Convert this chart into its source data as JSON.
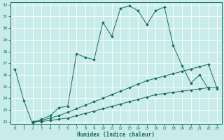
{
  "xlabel": "Humidex (Indice chaleur)",
  "xlim": [
    -0.5,
    23.5
  ],
  "ylim": [
    21.8,
    32.2
  ],
  "yticks": [
    22,
    23,
    24,
    25,
    26,
    27,
    28,
    29,
    30,
    31,
    32
  ],
  "xticks": [
    0,
    1,
    2,
    3,
    4,
    5,
    6,
    7,
    8,
    9,
    10,
    11,
    12,
    13,
    14,
    15,
    16,
    17,
    18,
    19,
    20,
    21,
    22,
    23
  ],
  "background_color": "#c8ece9",
  "line_color": "#1a6b5e",
  "grid_color": "#ffffff",
  "line1_x": [
    0,
    1,
    2,
    3,
    4,
    5,
    6,
    7,
    8,
    9,
    10,
    11,
    12,
    13,
    14,
    15,
    16,
    17,
    18,
    19,
    20,
    21,
    22
  ],
  "line1_y": [
    26.5,
    23.8,
    21.8,
    22.2,
    22.5,
    23.2,
    23.3,
    27.8,
    27.5,
    27.3,
    30.5,
    29.3,
    31.7,
    31.9,
    31.5,
    30.3,
    31.5,
    31.8,
    28.5,
    26.8,
    25.3,
    26.0,
    24.8
  ],
  "line2_x": [
    2,
    3,
    4,
    5,
    6,
    7,
    8,
    9,
    10,
    11,
    12,
    13,
    14,
    15,
    16,
    17,
    18,
    19,
    20,
    21,
    22,
    23
  ],
  "line2_y": [
    22.0,
    22.1,
    22.3,
    22.5,
    22.8,
    23.1,
    23.4,
    23.7,
    24.0,
    24.3,
    24.6,
    24.9,
    25.2,
    25.5,
    25.7,
    25.9,
    26.1,
    26.3,
    26.5,
    26.7,
    26.9,
    24.8
  ],
  "line3_x": [
    2,
    3,
    4,
    5,
    6,
    7,
    8,
    9,
    10,
    11,
    12,
    13,
    14,
    15,
    16,
    17,
    18,
    19,
    20,
    21,
    22,
    23
  ],
  "line3_y": [
    22.0,
    22.0,
    22.1,
    22.2,
    22.3,
    22.5,
    22.7,
    22.9,
    23.1,
    23.3,
    23.5,
    23.7,
    23.9,
    24.1,
    24.3,
    24.4,
    24.5,
    24.6,
    24.7,
    24.8,
    24.9,
    24.9
  ]
}
